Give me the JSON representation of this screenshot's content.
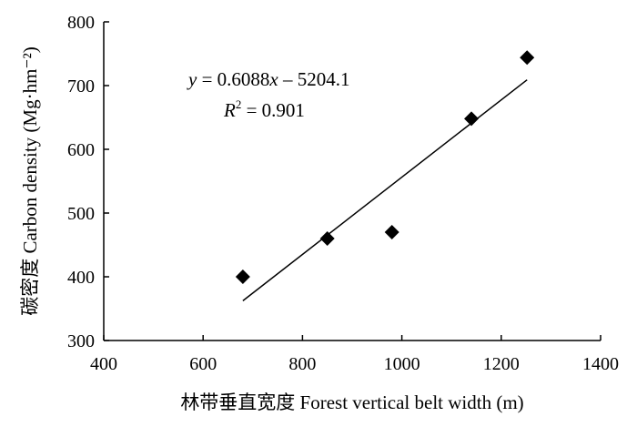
{
  "chart_data": {
    "type": "scatter",
    "title": "",
    "xlabel": "林带垂直宽度 Forest vertical belt width (m)",
    "ylabel": "碳密度 Carbon density (Mg·hm⁻²)",
    "xlim": [
      400,
      1400
    ],
    "ylim": [
      300,
      800
    ],
    "x_ticks": [
      400,
      600,
      800,
      1000,
      1200,
      1400
    ],
    "y_ticks": [
      300,
      400,
      500,
      600,
      700,
      800
    ],
    "x_tick_labels": [
      "400",
      "600",
      "800",
      "1000",
      "1200",
      "1400"
    ],
    "y_tick_labels": [
      "300",
      "400",
      "500",
      "600",
      "700",
      "800"
    ],
    "grid": false,
    "legend": "none",
    "marker": "diamond",
    "marker_color": "#000000",
    "points": [
      {
        "x": 680,
        "y": 400
      },
      {
        "x": 850,
        "y": 460
      },
      {
        "x": 980,
        "y": 470
      },
      {
        "x": 1140,
        "y": 648
      },
      {
        "x": 1252,
        "y": 744
      }
    ],
    "trendline": {
      "type": "linear",
      "slope": 0.6088,
      "intercept": -5204.1,
      "x_range": [
        680,
        1252
      ],
      "equation_label": "y = 0.6088x − 5204.1",
      "r2_label": "R² = 0.901"
    },
    "annotations": {
      "eq_y": "y",
      "eq_rest": " = 0.6088",
      "eq_x": "x",
      "eq_tail": " – 5204.1",
      "r2_R": "R",
      "r2_sup": "2",
      "r2_rest": " = 0.901"
    }
  }
}
